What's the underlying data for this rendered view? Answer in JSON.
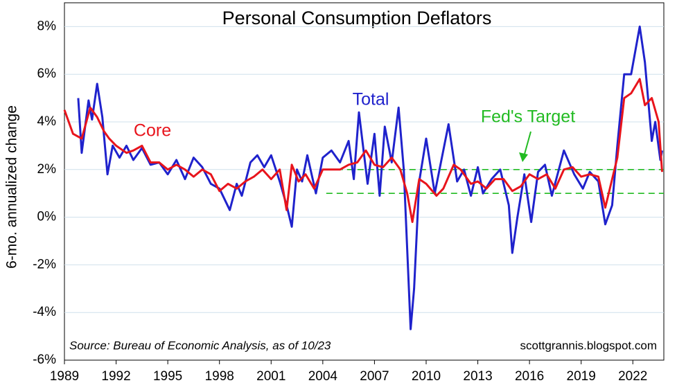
{
  "chart_data": {
    "type": "line",
    "title": "Personal Consumption Deflators",
    "y_label": "6-mo. annualized change",
    "source": "Source:  Bureau of Economic Analysis, as of 10/23",
    "credit": "scottgrannis.blogspot.com",
    "target_label": "Fed's Target",
    "target_lines": [
      1,
      2
    ],
    "target_start": 2004.2,
    "target_color": "#22bb22",
    "xlim": [
      1989,
      2023.8
    ],
    "xticks": [
      1989,
      1992,
      1995,
      1998,
      2001,
      2004,
      2007,
      2010,
      2013,
      2016,
      2019,
      2022
    ],
    "ylim": [
      -6,
      9
    ],
    "yticks": [
      {
        "value": -6,
        "label": "-6%"
      },
      {
        "value": -4,
        "label": "-4%"
      },
      {
        "value": -2,
        "label": "-2%"
      },
      {
        "value": 0,
        "label": "0%"
      },
      {
        "value": 2,
        "label": "2%"
      },
      {
        "value": 4,
        "label": "4%"
      },
      {
        "value": 6,
        "label": "6%"
      },
      {
        "value": 8,
        "label": "8%"
      }
    ],
    "grid": true,
    "series": [
      {
        "name": "Total",
        "color": "#1f22cc",
        "x": [
          1989.8,
          1990.0,
          1990.4,
          1990.6,
          1990.9,
          1991.2,
          1991.5,
          1991.8,
          1992.2,
          1992.6,
          1993.0,
          1993.5,
          1994.0,
          1994.5,
          1995.0,
          1995.5,
          1996.0,
          1996.5,
          1997.0,
          1997.5,
          1998.0,
          1998.6,
          1999.0,
          1999.3,
          1999.8,
          2000.2,
          2000.6,
          2001.0,
          2001.5,
          2001.9,
          2002.2,
          2002.5,
          2002.8,
          2003.1,
          2003.6,
          2004.0,
          2004.5,
          2005.0,
          2005.5,
          2005.8,
          2006.1,
          2006.6,
          2007.0,
          2007.3,
          2007.6,
          2008.0,
          2008.4,
          2008.7,
          2009.1,
          2009.3,
          2009.6,
          2010.0,
          2010.5,
          2011.3,
          2011.8,
          2012.2,
          2012.6,
          2013.0,
          2013.3,
          2013.8,
          2014.3,
          2014.8,
          2015.0,
          2015.3,
          2015.7,
          2016.1,
          2016.5,
          2016.9,
          2017.3,
          2018.0,
          2018.6,
          2019.1,
          2019.5,
          2020.0,
          2020.4,
          2020.8,
          2021.1,
          2021.5,
          2021.9,
          2022.4,
          2022.7,
          2023.1,
          2023.3,
          2023.6,
          2023.7
        ],
        "values": [
          5.0,
          2.7,
          4.9,
          4.1,
          5.6,
          4.2,
          1.8,
          3.0,
          2.5,
          3.0,
          2.4,
          2.9,
          2.2,
          2.3,
          1.8,
          2.4,
          1.6,
          2.5,
          2.1,
          1.4,
          1.2,
          0.3,
          1.4,
          0.9,
          2.3,
          2.6,
          2.1,
          2.6,
          1.5,
          0.5,
          -0.4,
          2.0,
          1.5,
          2.6,
          1.0,
          2.5,
          2.8,
          2.3,
          3.2,
          1.6,
          4.4,
          1.4,
          3.5,
          0.9,
          3.8,
          2.3,
          4.6,
          2.0,
          -4.7,
          -3.0,
          1.5,
          3.3,
          1.0,
          3.9,
          1.5,
          2.0,
          0.9,
          2.1,
          1.0,
          1.6,
          2.0,
          0.5,
          -1.5,
          0.0,
          1.8,
          -0.2,
          1.9,
          2.2,
          0.9,
          2.8,
          1.8,
          1.2,
          1.9,
          1.5,
          -0.3,
          0.5,
          3.0,
          6.0,
          6.0,
          8.0,
          6.5,
          3.2,
          4.0,
          2.4,
          2.8
        ]
      },
      {
        "name": "Core",
        "color": "#e8141c",
        "x": [
          1989.0,
          1989.5,
          1990.0,
          1990.5,
          1990.9,
          1991.3,
          1991.6,
          1992.0,
          1992.6,
          1993.0,
          1993.5,
          1994.0,
          1994.5,
          1995.0,
          1995.5,
          1996.0,
          1996.5,
          1997.0,
          1997.5,
          1998.0,
          1998.5,
          1999.0,
          1999.5,
          2000.0,
          2000.5,
          2001.0,
          2001.5,
          2001.9,
          2002.2,
          2002.6,
          2003.0,
          2003.5,
          2004.0,
          2004.5,
          2005.0,
          2005.5,
          2006.0,
          2006.5,
          2007.0,
          2007.5,
          2008.0,
          2008.5,
          2008.9,
          2009.2,
          2009.6,
          2010.0,
          2010.6,
          2011.0,
          2011.6,
          2012.0,
          2012.6,
          2013.0,
          2013.5,
          2014.0,
          2014.5,
          2015.0,
          2015.5,
          2016.0,
          2016.5,
          2017.0,
          2017.5,
          2018.0,
          2018.5,
          2019.0,
          2019.5,
          2020.0,
          2020.4,
          2020.8,
          2021.1,
          2021.5,
          2021.9,
          2022.4,
          2022.7,
          2023.1,
          2023.5,
          2023.7
        ],
        "values": [
          4.5,
          3.5,
          3.3,
          4.6,
          4.2,
          3.6,
          3.3,
          3.0,
          2.7,
          2.8,
          3.0,
          2.3,
          2.3,
          2.0,
          2.2,
          2.0,
          1.7,
          2.0,
          1.8,
          1.1,
          1.4,
          1.2,
          1.5,
          1.7,
          2.0,
          1.6,
          2.0,
          0.3,
          2.2,
          1.5,
          1.8,
          1.2,
          2.0,
          2.0,
          2.0,
          2.2,
          2.3,
          2.8,
          2.2,
          2.1,
          2.5,
          2.0,
          1.0,
          -0.2,
          1.6,
          1.4,
          0.9,
          1.2,
          2.2,
          2.0,
          1.4,
          1.5,
          1.2,
          1.6,
          1.6,
          1.1,
          1.3,
          1.8,
          1.6,
          1.8,
          1.2,
          2.0,
          2.1,
          1.7,
          1.8,
          1.7,
          0.4,
          1.6,
          2.5,
          5.0,
          5.2,
          5.8,
          4.7,
          5.0,
          4.0,
          1.9
        ]
      }
    ]
  }
}
